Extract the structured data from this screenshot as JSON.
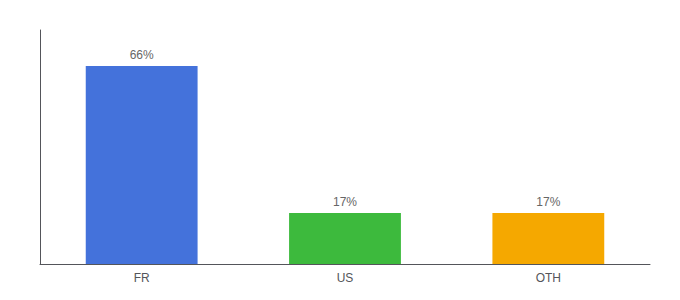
{
  "chart_data": {
    "type": "bar",
    "categories": [
      "FR",
      "US",
      "OTH"
    ],
    "values": [
      66,
      17,
      17
    ],
    "value_labels": [
      "66%",
      "17%",
      "17%"
    ],
    "colors": [
      "#4472db",
      "#3dba3d",
      "#f5a800"
    ],
    "data_labels": true,
    "ylim": [
      0,
      78
    ],
    "grid": false,
    "tick_labels": "x"
  }
}
